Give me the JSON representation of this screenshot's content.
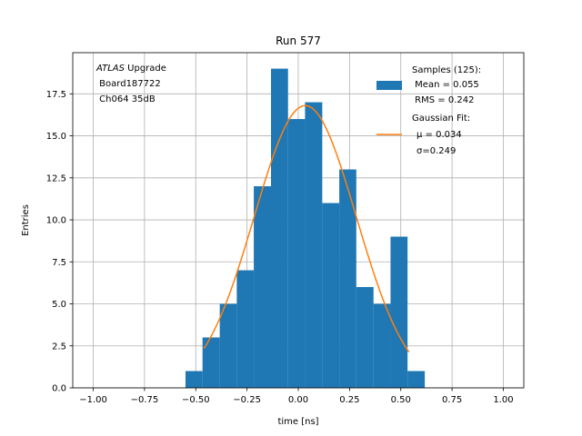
{
  "chart_data": {
    "type": "bar",
    "title": "Run 577",
    "xlabel": "time [ns]",
    "ylabel": "Entries",
    "xlim": [
      -1.1,
      1.1
    ],
    "ylim": [
      0,
      19.95
    ],
    "grid": true,
    "x_ticks": [
      {
        "value": -1.0,
        "label": "−1.00"
      },
      {
        "value": -0.75,
        "label": "−0.75"
      },
      {
        "value": -0.5,
        "label": "−0.50"
      },
      {
        "value": -0.25,
        "label": "−0.25"
      },
      {
        "value": 0.0,
        "label": "0.00"
      },
      {
        "value": 0.25,
        "label": "0.25"
      },
      {
        "value": 0.5,
        "label": "0.50"
      },
      {
        "value": 0.75,
        "label": "0.75"
      },
      {
        "value": 1.0,
        "label": "1.00"
      }
    ],
    "y_ticks": [
      {
        "value": 0.0,
        "label": "0.0"
      },
      {
        "value": 2.5,
        "label": "2.5"
      },
      {
        "value": 5.0,
        "label": "5.0"
      },
      {
        "value": 7.5,
        "label": "7.5"
      },
      {
        "value": 10.0,
        "label": "10.0"
      },
      {
        "value": 12.5,
        "label": "12.5"
      },
      {
        "value": 15.0,
        "label": "15.0"
      },
      {
        "value": 17.5,
        "label": "17.5"
      }
    ],
    "bin_edges": [
      -0.55,
      -0.467,
      -0.383,
      -0.3,
      -0.217,
      -0.133,
      -0.05,
      0.033,
      0.117,
      0.2,
      0.283,
      0.367,
      0.45,
      0.533,
      0.617
    ],
    "counts": [
      1,
      3,
      5,
      7,
      12,
      19,
      16,
      17,
      11,
      13,
      6,
      5,
      9,
      1
    ],
    "series": [
      {
        "name": "Samples",
        "color": "#1f77b4"
      },
      {
        "name": "Gaussian Fit",
        "color": "#ff7f0e"
      }
    ],
    "fit": {
      "amplitude": 16.8,
      "mu": 0.034,
      "sigma": 0.249,
      "x_range": [
        -0.46,
        0.54
      ]
    },
    "legend_position": "top-right",
    "legend": {
      "samples_lines": [
        "Samples (125):",
        " Mean = 0.055",
        " RMS = 0.242"
      ],
      "fit_lines": [
        "Gaussian Fit:",
        "μ = 0.034",
        "σ=0.249"
      ]
    },
    "annotation": {
      "italic_text": "ATLAS",
      "line1_rest": " Upgrade",
      "line2": " Board187722",
      "line3": " Ch064 35dB"
    }
  }
}
